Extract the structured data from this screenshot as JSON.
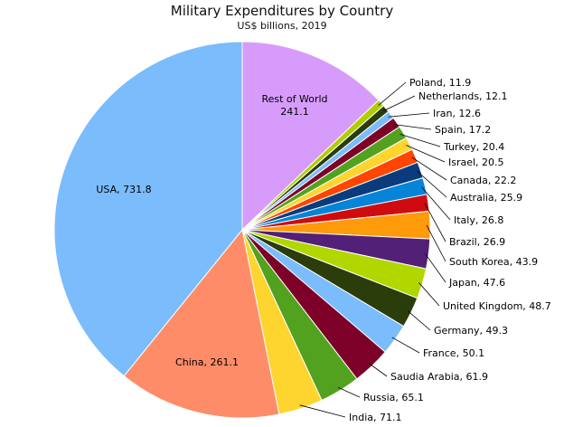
{
  "chart_data": {
    "type": "pie",
    "title": "Military Expenditures by Country",
    "subtitle": "US$ billions, 2019",
    "legend": "none",
    "slices": [
      {
        "label": "Rest of World",
        "value": 241.1,
        "color": "#d79cfb",
        "label_style": "inside"
      },
      {
        "label": "Poland",
        "value": 11.9,
        "color": "#b1cc00",
        "label_style": "outside"
      },
      {
        "label": "Netherlands",
        "value": 12.1,
        "color": "#2a3d0b",
        "label_style": "outside"
      },
      {
        "label": "Iran",
        "value": 12.6,
        "color": "#7bbcfd",
        "label_style": "outside"
      },
      {
        "label": "Spain",
        "value": 17.2,
        "color": "#7d0028",
        "label_style": "outside"
      },
      {
        "label": "Turkey",
        "value": 20.4,
        "color": "#53a21f",
        "label_style": "outside"
      },
      {
        "label": "Israel",
        "value": 20.5,
        "color": "#fed52f",
        "label_style": "outside"
      },
      {
        "label": "Canada",
        "value": 22.2,
        "color": "#ff4500",
        "label_style": "outside"
      },
      {
        "label": "Australia",
        "value": 25.9,
        "color": "#0a3b7d",
        "label_style": "outside"
      },
      {
        "label": "Italy",
        "value": 26.8,
        "color": "#0584d8",
        "label_style": "outside"
      },
      {
        "label": "Brazil",
        "value": 26.9,
        "color": "#d00b10",
        "label_style": "outside"
      },
      {
        "label": "South Korea",
        "value": 43.9,
        "color": "#ff9a0b",
        "label_style": "outside"
      },
      {
        "label": "Japan",
        "value": 47.6,
        "color": "#522077",
        "label_style": "outside"
      },
      {
        "label": "United Kingdom",
        "value": 48.7,
        "color": "#b1d600",
        "label_style": "outside"
      },
      {
        "label": "Germany",
        "value": 49.3,
        "color": "#2a3d0b",
        "label_style": "outside"
      },
      {
        "label": "France",
        "value": 50.1,
        "color": "#7bbcfd",
        "label_style": "outside"
      },
      {
        "label": "Saudia Arabia",
        "value": 61.9,
        "color": "#7d0028",
        "label_style": "outside"
      },
      {
        "label": "Russia",
        "value": 65.1,
        "color": "#53a21f",
        "label_style": "outside"
      },
      {
        "label": "India",
        "value": 71.1,
        "color": "#fed52f",
        "label_style": "outside"
      },
      {
        "label": "China",
        "value": 261.1,
        "color": "#ff8c69",
        "label_style": "inside"
      },
      {
        "label": "USA",
        "value": 731.8,
        "color": "#7bbcfd",
        "label_style": "inside"
      }
    ]
  }
}
